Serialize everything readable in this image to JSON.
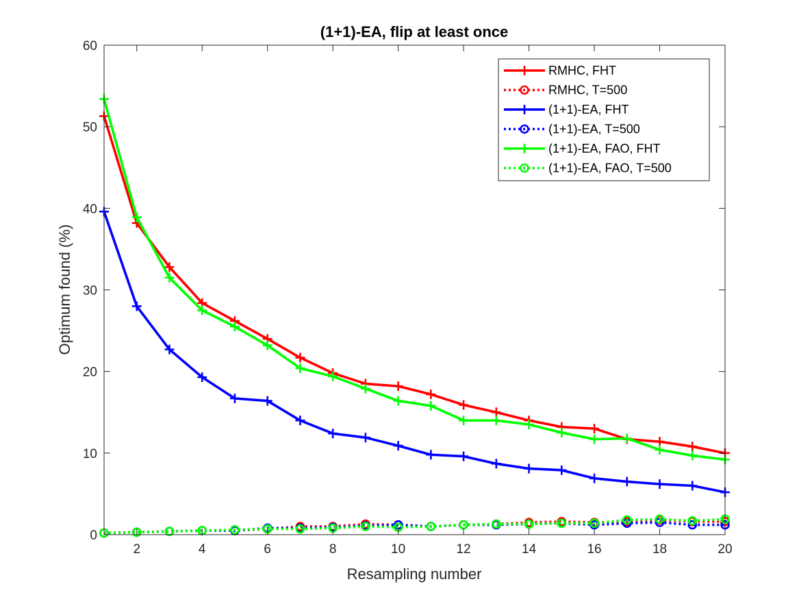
{
  "chart_data": {
    "type": "line",
    "title": "(1+1)-EA, flip at least once",
    "xlabel": "Resampling number",
    "ylabel": "Optimum found (%)",
    "xlim": [
      1,
      20
    ],
    "ylim": [
      0,
      60
    ],
    "xticks": [
      2,
      4,
      6,
      8,
      10,
      12,
      14,
      16,
      18,
      20
    ],
    "yticks": [
      0,
      10,
      20,
      30,
      40,
      50,
      60
    ],
    "grid": false,
    "legend_position": "top-right",
    "x": [
      1,
      2,
      3,
      4,
      5,
      6,
      7,
      8,
      9,
      10,
      11,
      12,
      13,
      14,
      15,
      16,
      17,
      18,
      19,
      20
    ],
    "series": [
      {
        "name": "RMHC, FHT",
        "color": "#ff0000",
        "line_style": "solid",
        "marker": "plus",
        "values": [
          51.3,
          38.2,
          32.8,
          28.4,
          26.2,
          24.0,
          21.7,
          19.8,
          18.5,
          18.2,
          17.2,
          15.9,
          15.0,
          14.0,
          13.2,
          13.0,
          11.7,
          11.4,
          10.8,
          10.0
        ]
      },
      {
        "name": "RMHC, T=500",
        "color": "#ff0000",
        "line_style": "dotted",
        "marker": "circle",
        "values": [
          0.2,
          0.3,
          0.4,
          0.5,
          0.5,
          0.7,
          1.0,
          1.0,
          1.3,
          1.2,
          1.0,
          1.2,
          1.3,
          1.5,
          1.6,
          1.5,
          1.6,
          1.8,
          1.6,
          1.6
        ]
      },
      {
        "name": "(1+1)-EA, FHT",
        "color": "#0000ff",
        "line_style": "solid",
        "marker": "plus",
        "values": [
          39.6,
          28.0,
          22.7,
          19.3,
          16.7,
          16.4,
          14.0,
          12.4,
          11.9,
          10.9,
          9.8,
          9.6,
          8.7,
          8.1,
          7.9,
          6.9,
          6.5,
          6.2,
          6.0,
          5.2
        ]
      },
      {
        "name": "(1+1)-EA, T=500",
        "color": "#0000ff",
        "line_style": "dotted",
        "marker": "circle",
        "values": [
          0.2,
          0.3,
          0.4,
          0.5,
          0.5,
          0.8,
          0.8,
          0.9,
          1.1,
          1.2,
          1.0,
          1.2,
          1.2,
          1.3,
          1.4,
          1.2,
          1.4,
          1.5,
          1.2,
          1.2
        ]
      },
      {
        "name": "(1+1)-EA, FAO, FHT",
        "color": "#00ff00",
        "line_style": "solid",
        "marker": "plus",
        "values": [
          53.4,
          38.9,
          31.5,
          27.5,
          25.5,
          23.2,
          20.4,
          19.4,
          17.9,
          16.4,
          15.8,
          14.0,
          14.0,
          13.5,
          12.5,
          11.7,
          11.8,
          10.4,
          9.7,
          9.2
        ]
      },
      {
        "name": "(1+1)-EA, FAO, T=500",
        "color": "#00ff00",
        "line_style": "dotted",
        "marker": "circle",
        "values": [
          0.2,
          0.3,
          0.4,
          0.5,
          0.6,
          0.7,
          0.7,
          0.8,
          1.0,
          0.9,
          1.0,
          1.2,
          1.3,
          1.3,
          1.4,
          1.4,
          1.8,
          1.9,
          1.7,
          1.9
        ]
      }
    ]
  }
}
